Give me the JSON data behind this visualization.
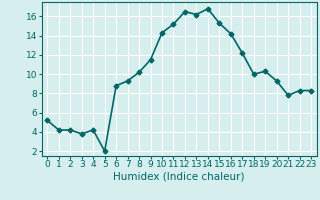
{
  "x": [
    0,
    1,
    2,
    3,
    4,
    5,
    6,
    7,
    8,
    9,
    10,
    11,
    12,
    13,
    14,
    15,
    16,
    17,
    18,
    19,
    20,
    21,
    22,
    23
  ],
  "y": [
    5.2,
    4.2,
    4.2,
    3.8,
    4.2,
    2.0,
    8.8,
    9.3,
    10.2,
    11.5,
    14.3,
    15.2,
    16.5,
    16.2,
    16.8,
    15.3,
    14.2,
    12.2,
    10.0,
    10.3,
    9.3,
    7.8,
    8.3,
    8.3
  ],
  "line_color": "#006666",
  "marker": "D",
  "marker_size": 2.5,
  "linewidth": 1.2,
  "xlabel": "Humidex (Indice chaleur)",
  "ylim": [
    1.5,
    17.5
  ],
  "yticks": [
    2,
    4,
    6,
    8,
    10,
    12,
    14,
    16
  ],
  "xticks": [
    0,
    1,
    2,
    3,
    4,
    5,
    6,
    7,
    8,
    9,
    10,
    11,
    12,
    13,
    14,
    15,
    16,
    17,
    18,
    19,
    20,
    21,
    22,
    23
  ],
  "background_color": "#d6eeee",
  "grid_color": "#ffffff",
  "xlabel_fontsize": 7.5,
  "tick_fontsize": 6.5
}
